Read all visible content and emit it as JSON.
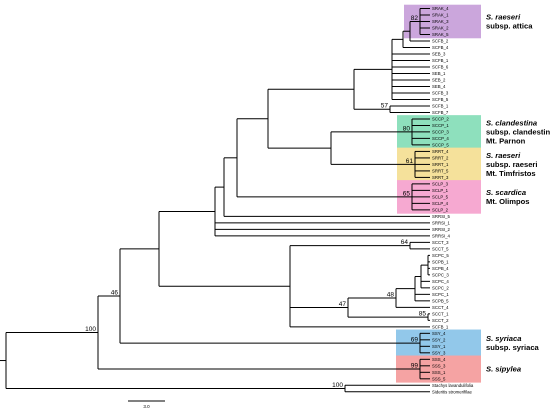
{
  "tree": {
    "leaves": [
      "SRAK_4",
      "SRAK_1",
      "SRAK_3",
      "SRAK_2",
      "SRAK_5",
      "SCFB_2",
      "SCFB_4",
      "SEB_3",
      "SCFB_1",
      "SCFB_6",
      "SEB_1",
      "SEB_2",
      "SEB_4",
      "SCFB_3",
      "SCFB_5",
      "SCFB_1",
      "SCFB_7",
      "SCCP_2",
      "SCCP_1",
      "SCCP_3",
      "SCCP_4",
      "SCCP_5",
      "SRRT_4",
      "SRRT_2",
      "SRRT_1",
      "SRRT_5",
      "SRRT_3",
      "SCLP_3",
      "SCLP_1",
      "SCLP_5",
      "SCLP_4",
      "SCLP_2",
      "SRRSI_5",
      "SRRSI_1",
      "SRRSI_2",
      "SRRSI_4",
      "SCCT_3",
      "SCCT_5",
      "SCPC_5",
      "SCPB_1",
      "SCPB_4",
      "SCPC_3",
      "SCPC_4",
      "SCPC_2",
      "SCPC_1",
      "SCPB_5",
      "SCCT_4",
      "SCCT_1",
      "SCCT_2",
      "SCFB_1",
      "SSY_4",
      "SSY_2",
      "SSY_1",
      "SSY_3",
      "SSS_4",
      "SSS_3",
      "SSS_1",
      "SSS_5",
      "Stachys lavandulifolia",
      "Sideritis stromerifilae"
    ],
    "support_values": [
      "82",
      "57",
      "80",
      "61",
      "65",
      "64",
      "48",
      "47",
      "85",
      "46",
      "100",
      "69",
      "99",
      "100"
    ]
  },
  "clades": [
    {
      "name": "raeseri-attica",
      "color": "#cba6dc",
      "lines": [
        {
          "italic": "S. raeseri",
          "rest": ""
        },
        {
          "italic": "",
          "rest": "subsp. attica"
        }
      ]
    },
    {
      "name": "clandestina",
      "color": "#8ee0bd",
      "lines": [
        {
          "italic": "S. clandestina",
          "rest": ""
        },
        {
          "italic": "",
          "rest": "subsp. clandestina"
        },
        {
          "italic": "",
          "rest": "Mt. Parnon"
        }
      ]
    },
    {
      "name": "raeseri-raeseri",
      "color": "#f5e19b",
      "lines": [
        {
          "italic": "S. raeseri",
          "rest": ""
        },
        {
          "italic": "",
          "rest": "subsp. raeseri"
        },
        {
          "italic": "",
          "rest": "Mt. Timfristos"
        }
      ]
    },
    {
      "name": "scardica",
      "color": "#f6a9d1",
      "lines": [
        {
          "italic": "S. scardica",
          "rest": ""
        },
        {
          "italic": "",
          "rest": "Mt. Olimpos"
        }
      ]
    },
    {
      "name": "syriaca",
      "color": "#92c8ea",
      "lines": [
        {
          "italic": "S. syriaca",
          "rest": ""
        },
        {
          "italic": "",
          "rest": "subsp. syriaca"
        }
      ]
    },
    {
      "name": "sipylea",
      "color": "#f5a3a3",
      "lines": [
        {
          "italic": "S. sipylea",
          "rest": ""
        }
      ]
    }
  ],
  "scale_bar": {
    "label": "3.0"
  }
}
